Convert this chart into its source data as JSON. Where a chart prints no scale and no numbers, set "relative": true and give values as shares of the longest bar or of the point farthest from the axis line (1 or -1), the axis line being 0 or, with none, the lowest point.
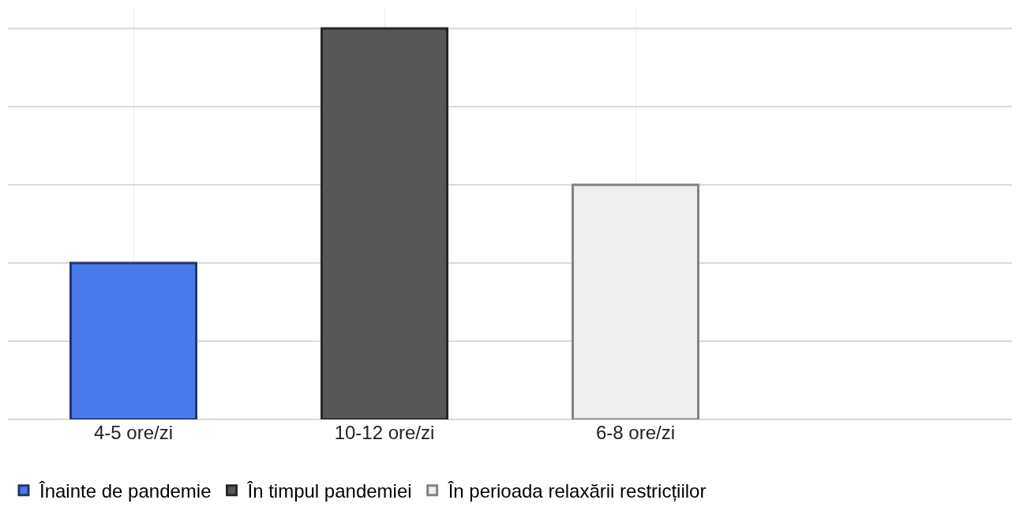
{
  "chart_data": {
    "type": "bar",
    "relative": true,
    "categories": [
      "4-5 ore/zi",
      "10-12 ore/zi",
      "6-8 ore/zi",
      null
    ],
    "series": [
      {
        "name": "Înainte de pandemie",
        "color": "#4a7bec",
        "values": [
          0.4,
          null,
          null,
          null
        ]
      },
      {
        "name": "În timpul pandemiei",
        "color": "#575757",
        "values": [
          null,
          1,
          null,
          null
        ]
      },
      {
        "name": "În perioada relaxării restricțiilor",
        "color": "#eeeeee",
        "values": [
          null,
          null,
          0.6,
          null
        ]
      }
    ],
    "grid": true,
    "legend": "bottom left"
  }
}
